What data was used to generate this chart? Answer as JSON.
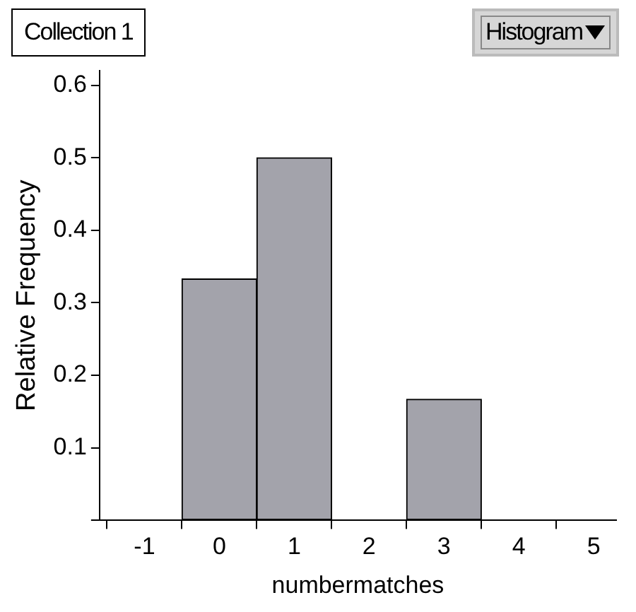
{
  "chart_data": {
    "type": "histogram",
    "title": "Collection 1",
    "annotations": [
      "Histogram"
    ],
    "xlabel": "numbermatches",
    "ylabel": "Relative Frequency",
    "bins": [
      -0.5,
      0.5,
      1.5,
      2.5,
      3.5
    ],
    "values": [
      0.333,
      0.5,
      0,
      0.167
    ],
    "color": "#a3a3ab",
    "xlim": [
      -1.6,
      5.3
    ],
    "xticks": [
      -1,
      0,
      1,
      2,
      3,
      4,
      5
    ],
    "ylim": [
      0,
      0.62
    ],
    "yticks": [
      {
        "value": 0,
        "label": null
      },
      0.1,
      0.2,
      0.3,
      0.4,
      0.5,
      0.6
    ],
    "grid": false,
    "legend": false
  }
}
